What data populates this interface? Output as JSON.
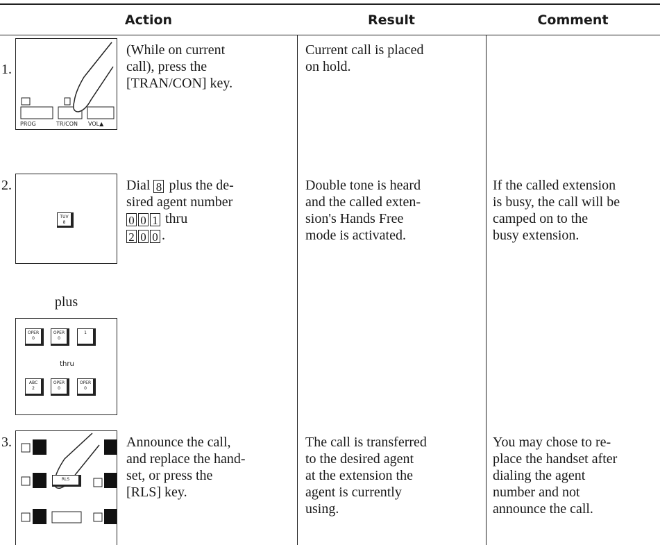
{
  "header": {
    "action": "Action",
    "result": "Result",
    "comment": "Comment"
  },
  "rows": [
    {
      "number": "1.",
      "illustration": {
        "keys": [
          "PROG",
          "TR/CON",
          "VOL▲"
        ]
      },
      "action": [
        [
          "(While on current"
        ],
        [
          "call), press the"
        ],
        [
          "[TRAN/CON] key."
        ]
      ],
      "result": [
        "Current call is placed",
        "on hold."
      ],
      "comment": []
    },
    {
      "number": "2.",
      "illustration": {
        "keys": [
          [
            "TUV",
            "8"
          ]
        ]
      },
      "action": [
        [
          "Dial ",
          {
            "key": "8"
          },
          " plus the de-"
        ],
        [
          "sired agent number"
        ],
        [
          {
            "key": "0"
          },
          {
            "key": "0"
          },
          {
            "key": "1"
          },
          " thru"
        ],
        [
          {
            "key": "2"
          },
          {
            "key": "0"
          },
          {
            "key": "0"
          },
          "."
        ]
      ],
      "result": [
        "Double tone is heard",
        "and the called exten-",
        "sion's Hands Free",
        "mode is activated."
      ],
      "comment": [
        "If the called extension",
        "is busy, the call will be",
        "camped on to the",
        "busy extension."
      ],
      "plus": "plus",
      "keypad": {
        "first": [
          [
            "OPER",
            "0"
          ],
          [
            "OPER",
            "0"
          ],
          [
            "1"
          ]
        ],
        "thru": "thru",
        "last": [
          [
            "ABC",
            "2"
          ],
          [
            "OPER",
            "0"
          ],
          [
            "OPER",
            "0"
          ]
        ]
      }
    },
    {
      "number": "3.",
      "illustration": {
        "keys": [
          "RLS"
        ]
      },
      "action": [
        [
          "Announce the call,"
        ],
        [
          "and replace the hand-"
        ],
        [
          "set, or press the"
        ],
        [
          "[RLS] key."
        ]
      ],
      "result": [
        "The call is transferred",
        "to the desired agent",
        "at the extension the",
        "agent is currently",
        "using."
      ],
      "comment": [
        "You may chose to re-",
        "place the handset after",
        "dialing the agent",
        "number and not",
        "announce the call."
      ]
    }
  ]
}
